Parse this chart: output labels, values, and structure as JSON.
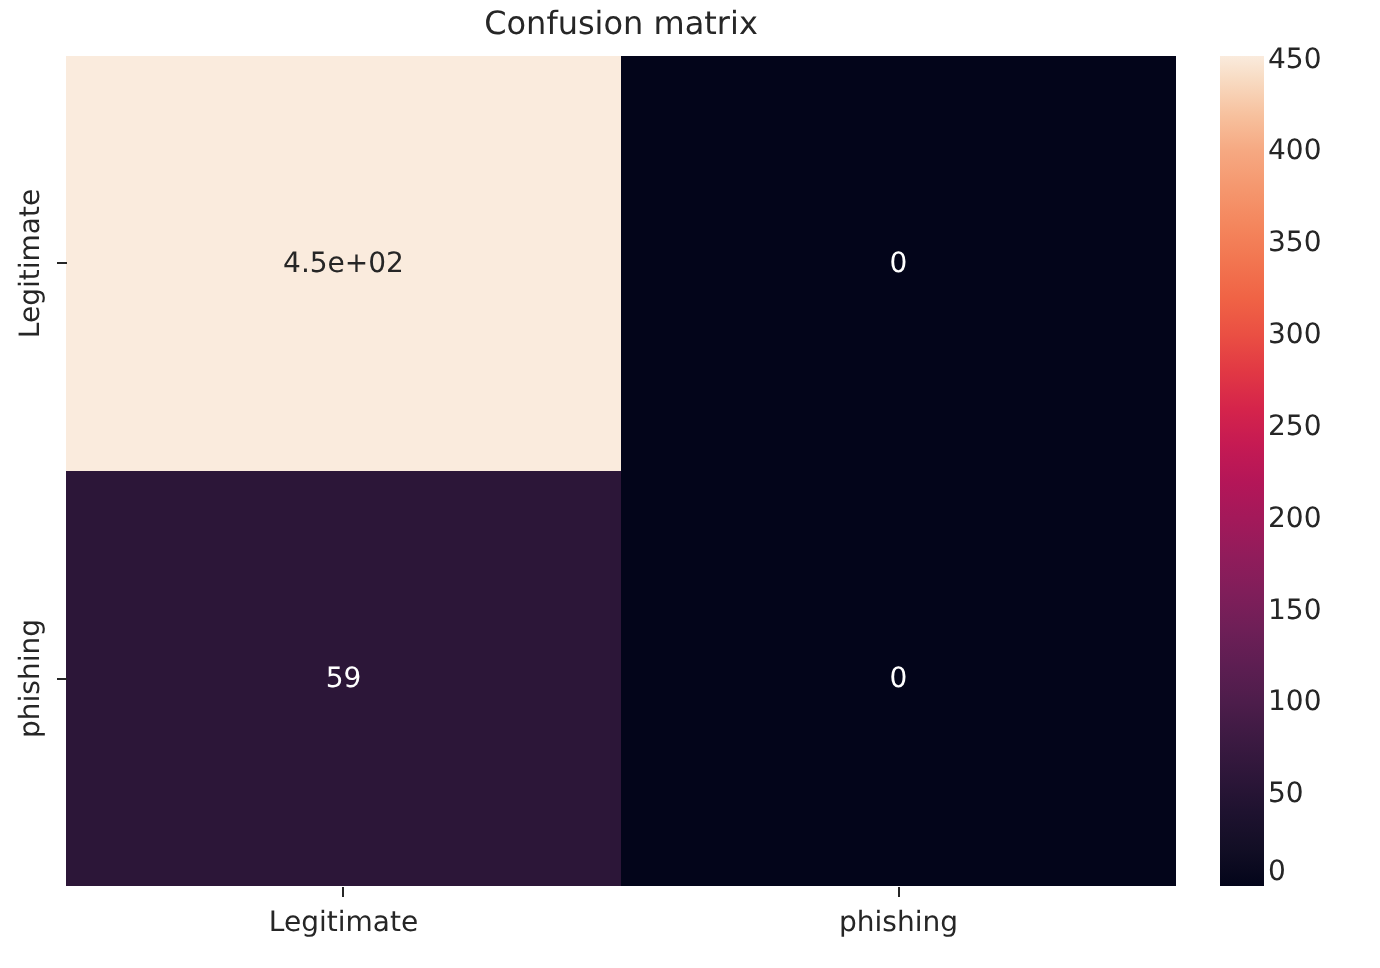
{
  "chart_data": {
    "type": "heatmap",
    "title": "Confusion matrix",
    "categories": [
      "Legitimate",
      "phishing"
    ],
    "y_categories": [
      "Legitimate",
      "phishing"
    ],
    "cells": [
      [
        452,
        0
      ],
      [
        59,
        0
      ]
    ],
    "cell_labels": [
      [
        "4.5e+02",
        "0"
      ],
      [
        "59",
        "0"
      ]
    ],
    "clim": [
      0,
      452
    ],
    "cticks": [
      0,
      50,
      100,
      150,
      200,
      250,
      300,
      350,
      400,
      450
    ]
  }
}
